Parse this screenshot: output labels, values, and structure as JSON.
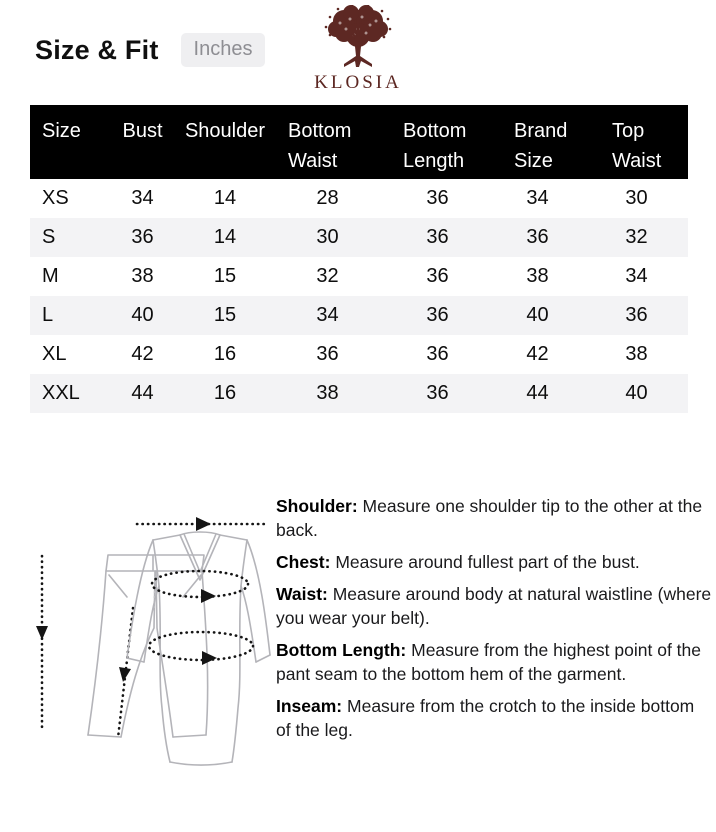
{
  "header": {
    "title": "Size & Fit",
    "unit_badge": "Inches",
    "brand": "KLOSIA",
    "logo_icon": "tree-icon"
  },
  "colors": {
    "brand_maroon": "#5d2823",
    "table_header_bg": "#000000",
    "row_stripe": "#f3f3f5",
    "badge_bg": "#efeff1",
    "badge_text": "#8e8e93"
  },
  "chart_data": {
    "type": "table",
    "title": "Size & Fit",
    "unit": "Inches",
    "columns": [
      "Size",
      "Bust",
      "Shoulder",
      "Bottom Waist",
      "Bottom Length",
      "Brand Size",
      "Top Waist"
    ],
    "rows": [
      [
        "XS",
        "34",
        "14",
        "28",
        "36",
        "34",
        "30"
      ],
      [
        "S",
        "36",
        "14",
        "30",
        "36",
        "36",
        "32"
      ],
      [
        "M",
        "38",
        "15",
        "32",
        "36",
        "38",
        "34"
      ],
      [
        "L",
        "40",
        "15",
        "34",
        "36",
        "40",
        "36"
      ],
      [
        "XL",
        "42",
        "16",
        "36",
        "36",
        "42",
        "38"
      ],
      [
        "XXL",
        "44",
        "16",
        "38",
        "36",
        "44",
        "40"
      ]
    ]
  },
  "instructions": [
    {
      "label": "Shoulder:",
      "text": "Measure one shoulder tip to the other at the back."
    },
    {
      "label": "Chest:",
      "text": "Measure around fullest  part of the bust."
    },
    {
      "label": "Waist:",
      "text": "Measure around body at natural waistline (where you wear your belt)."
    },
    {
      "label": "Bottom Length:",
      "text": "Measure from the highest point of the pant seam to the bottom hem of the garment."
    },
    {
      "label": "Inseam:",
      "text": "Measure from the crotch to the inside bottom of the leg."
    }
  ],
  "illustration": {
    "items": [
      "pants-line-drawing",
      "dress-line-drawing"
    ],
    "measure_arrows": [
      "pant-length",
      "inseam",
      "shoulder-width",
      "bust-girth",
      "waist-girth"
    ]
  }
}
